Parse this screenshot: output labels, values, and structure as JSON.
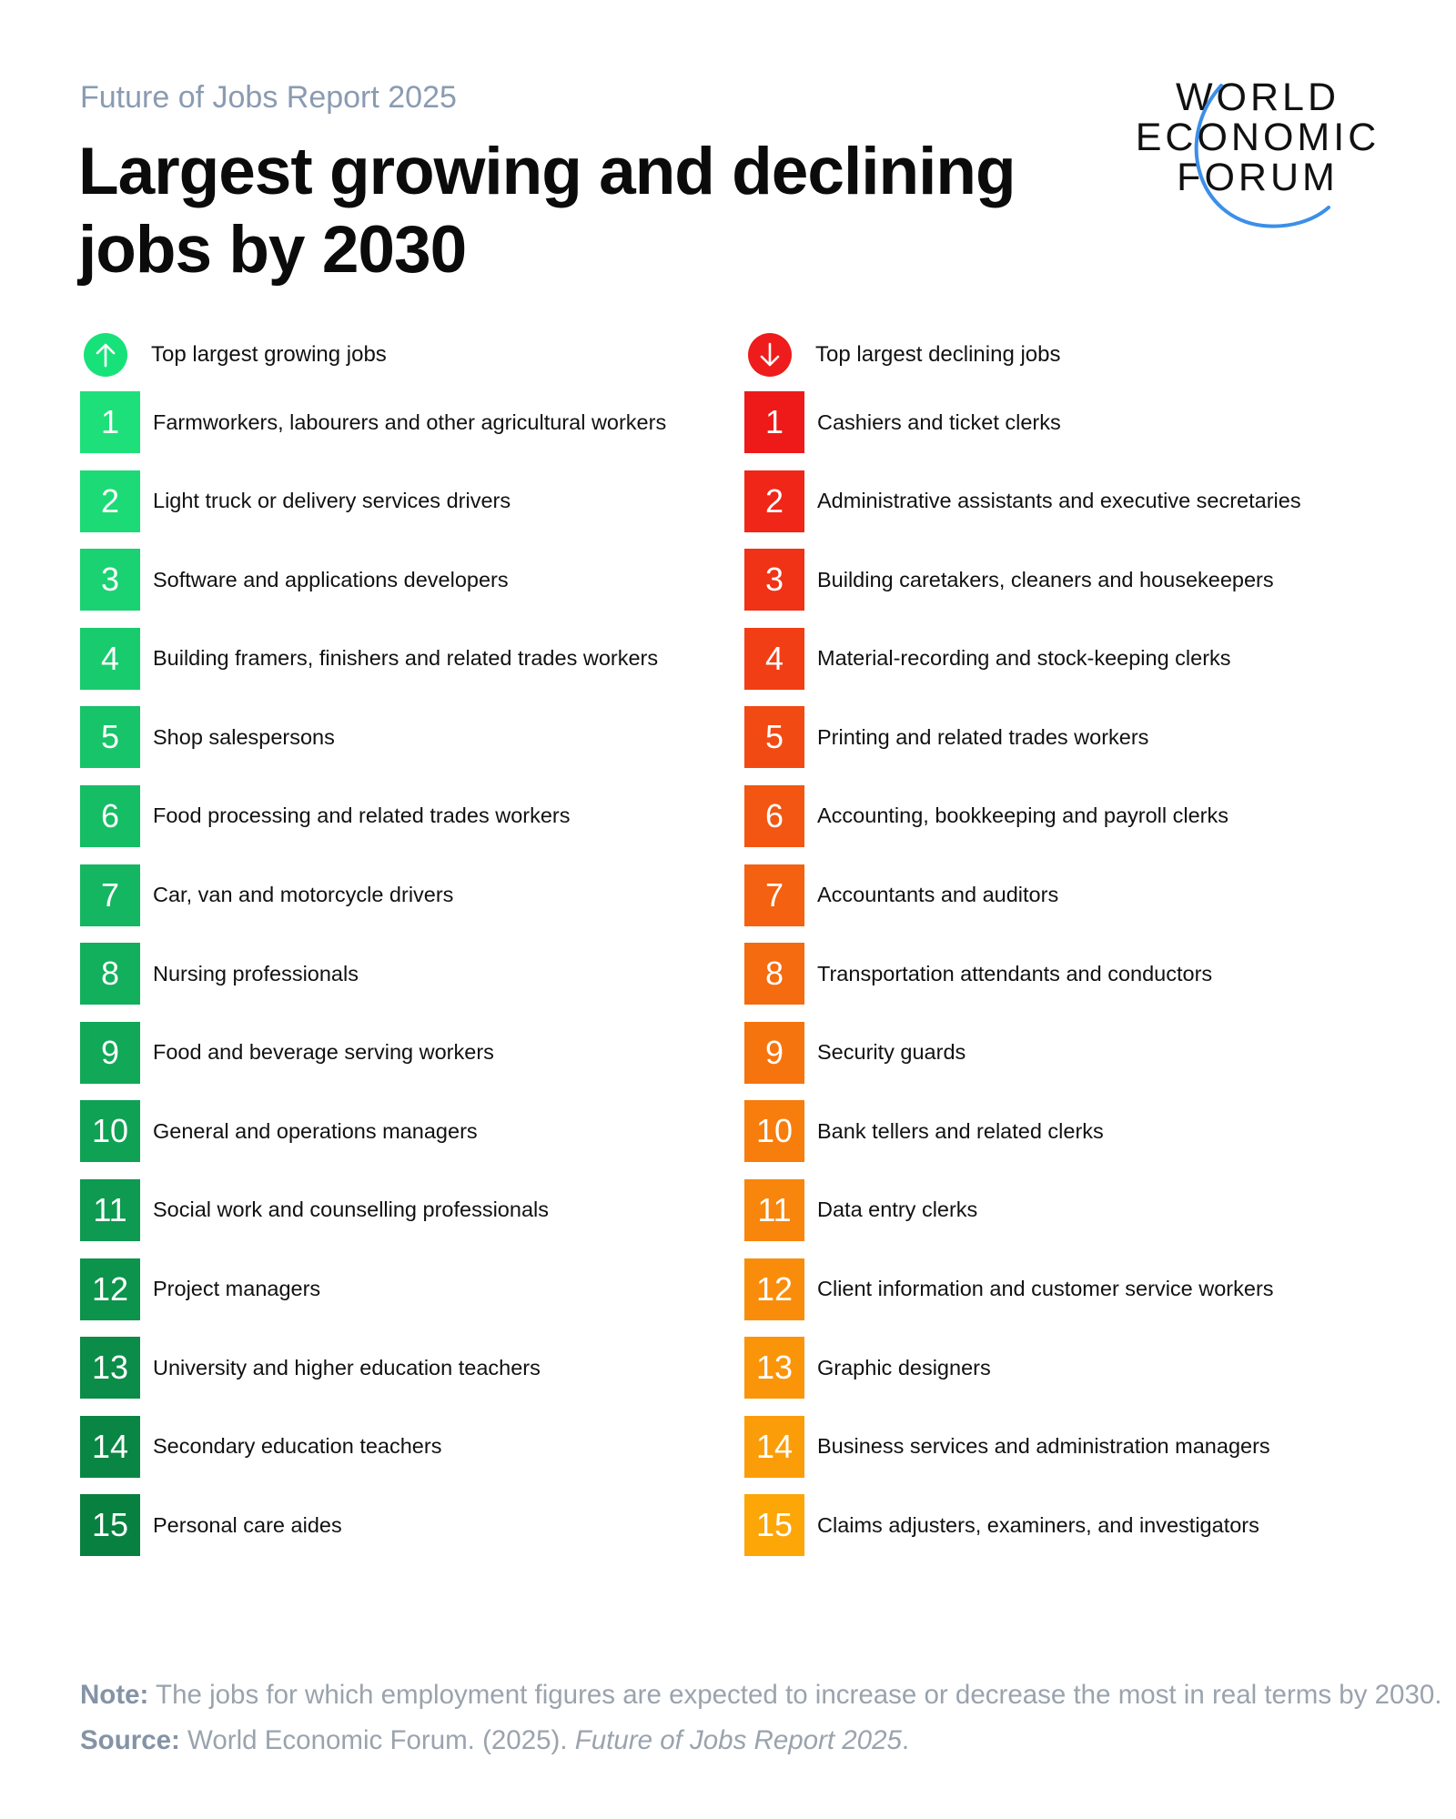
{
  "header": {
    "kicker": "Future of Jobs Report 2025",
    "title_line1": "Largest growing and declining",
    "title_line2": "jobs by 2030"
  },
  "logo": {
    "line1": "WORLD",
    "line2": "ECONOMIC",
    "line3": "FORUM",
    "arc_color": "#3b8fe8"
  },
  "growing": {
    "heading": "Top largest growing jobs",
    "icon": "arrow-up-icon",
    "icon_color": "#17e27a",
    "items": [
      {
        "rank": "1",
        "label": "Farmworkers, labourers and other agricultural workers",
        "color": "#1ee07a"
      },
      {
        "rank": "2",
        "label": "Light truck or delivery services drivers",
        "color": "#1cda76"
      },
      {
        "rank": "3",
        "label": "Software and applications developers",
        "color": "#1ad272"
      },
      {
        "rank": "4",
        "label": "Building framers, finishers and related trades workers",
        "color": "#18cb6d"
      },
      {
        "rank": "5",
        "label": "Shop salespersons",
        "color": "#17c469"
      },
      {
        "rank": "6",
        "label": "Food processing and related trades workers",
        "color": "#15bd65"
      },
      {
        "rank": "7",
        "label": "Car, van and motorcycle drivers",
        "color": "#14b661"
      },
      {
        "rank": "8",
        "label": "Nursing professionals",
        "color": "#12af5c"
      },
      {
        "rank": "9",
        "label": "Food and beverage serving workers",
        "color": "#11a858"
      },
      {
        "rank": "10",
        "label": "General and operations managers",
        "color": "#0fa154"
      },
      {
        "rank": "11",
        "label": "Social work and counselling professionals",
        "color": "#0e9a50"
      },
      {
        "rank": "12",
        "label": "Project managers",
        "color": "#0c934c"
      },
      {
        "rank": "13",
        "label": "University and higher education teachers",
        "color": "#0b8c48"
      },
      {
        "rank": "14",
        "label": "Secondary education teachers",
        "color": "#0a8644"
      },
      {
        "rank": "15",
        "label": "Personal care aides",
        "color": "#088040"
      }
    ]
  },
  "declining": {
    "heading": "Top largest declining jobs",
    "icon": "arrow-down-icon",
    "icon_color": "#ee1c1c",
    "items": [
      {
        "rank": "1",
        "label": "Cashiers and ticket clerks",
        "color": "#ee1a1a"
      },
      {
        "rank": "2",
        "label": "Administrative assistants and executive secretaries",
        "color": "#ef2618"
      },
      {
        "rank": "3",
        "label": "Building caretakers, cleaners and housekeepers",
        "color": "#f03216"
      },
      {
        "rank": "4",
        "label": "Material-recording and stock-keeping clerks",
        "color": "#f13e15"
      },
      {
        "rank": "5",
        "label": "Printing and related trades workers",
        "color": "#f24a13"
      },
      {
        "rank": "6",
        "label": "Accounting, bookkeeping and payroll clerks",
        "color": "#f35612"
      },
      {
        "rank": "7",
        "label": "Accountants and auditors",
        "color": "#f46110"
      },
      {
        "rank": "8",
        "label": "Transportation attendants and conductors",
        "color": "#f56b0f"
      },
      {
        "rank": "9",
        "label": "Security guards",
        "color": "#f6740e"
      },
      {
        "rank": "10",
        "label": "Bank tellers and related clerks",
        "color": "#f77d0d"
      },
      {
        "rank": "11",
        "label": "Data entry clerks",
        "color": "#f8850c"
      },
      {
        "rank": "12",
        "label": "Client information and customer service workers",
        "color": "#f98d0b"
      },
      {
        "rank": "13",
        "label": "Graphic designers",
        "color": "#fa950a"
      },
      {
        "rank": "14",
        "label": "Business services and administration managers",
        "color": "#fb9d09"
      },
      {
        "rank": "15",
        "label": "Claims adjusters, examiners, and investigators",
        "color": "#fca608"
      }
    ]
  },
  "footer": {
    "note_label": "Note:",
    "note_text": " The jobs for which employment figures are expected to increase or decrease the most in real terms by 2030.",
    "source_label": "Source:",
    "source_text": " World Economic Forum. (2025). ",
    "source_title": "Future of Jobs Report 2025",
    "source_end": "."
  }
}
